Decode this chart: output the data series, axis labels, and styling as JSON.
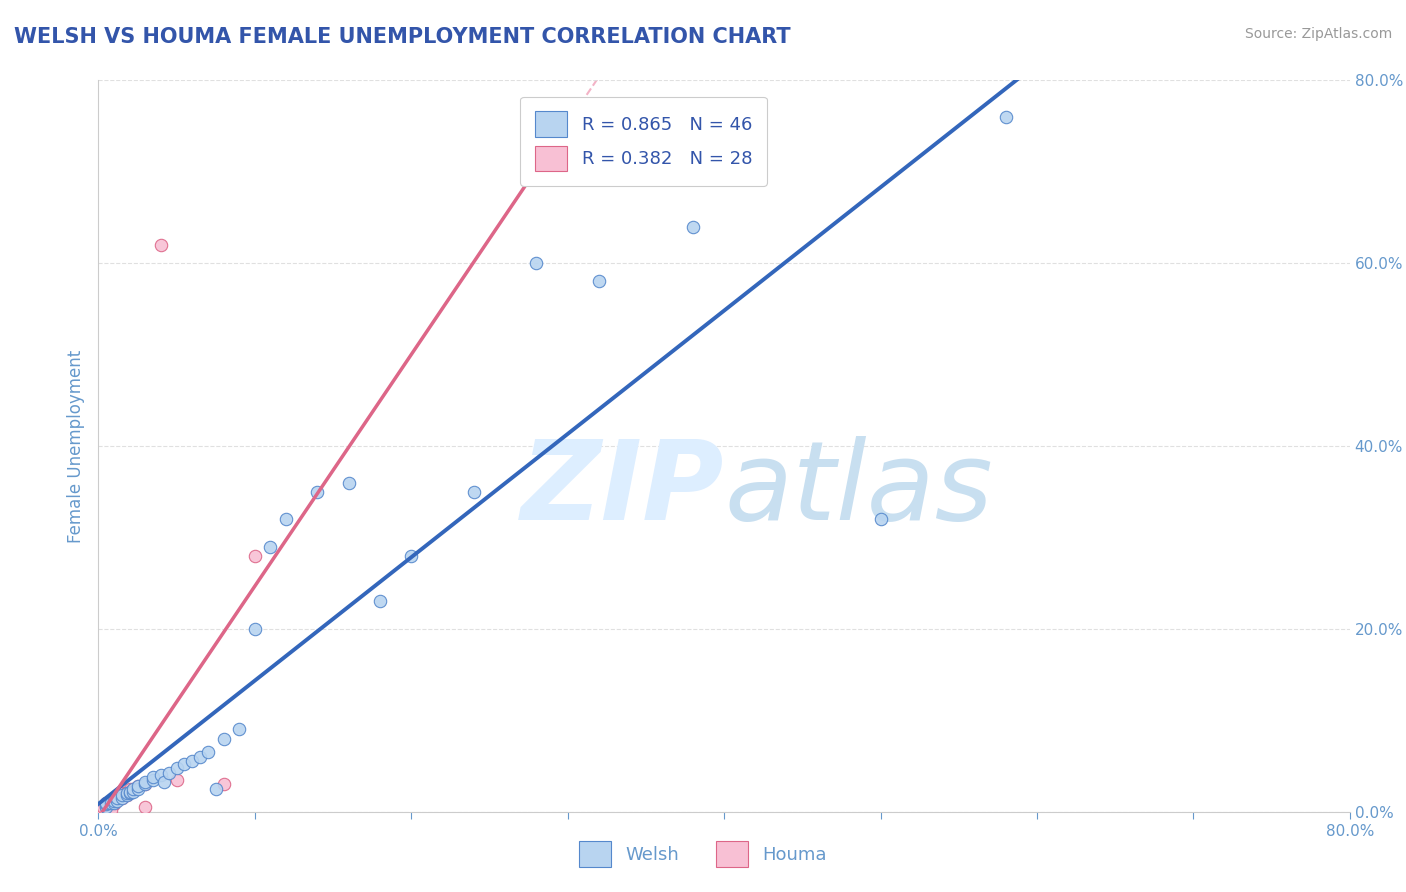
{
  "title": "WELSH VS HOUMA FEMALE UNEMPLOYMENT CORRELATION CHART",
  "source": "Source: ZipAtlas.com",
  "ylabel": "Female Unemployment",
  "welsh_r": 0.865,
  "welsh_n": 46,
  "houma_r": 0.382,
  "houma_n": 28,
  "welsh_color": "#b8d4f0",
  "welsh_edge_color": "#5588cc",
  "welsh_line_color": "#3366bb",
  "houma_color": "#f8c0d4",
  "houma_edge_color": "#dd6688",
  "houma_line_color": "#dd6688",
  "ref_line_color": "#f0a0b8",
  "title_color": "#3355aa",
  "axis_color": "#6699cc",
  "legend_color": "#3355aa",
  "background_color": "#ffffff",
  "watermark_color": "#ddeeff",
  "xlim": [
    0.0,
    0.8
  ],
  "ylim": [
    0.0,
    0.8
  ],
  "ytick_values": [
    0.0,
    0.2,
    0.4,
    0.6,
    0.8
  ],
  "grid_color": "#dddddd",
  "marker_size": 80,
  "welsh_x": [
    0.005,
    0.005,
    0.005,
    0.008,
    0.01,
    0.01,
    0.012,
    0.012,
    0.015,
    0.015,
    0.018,
    0.018,
    0.02,
    0.02,
    0.022,
    0.022,
    0.025,
    0.025,
    0.03,
    0.03,
    0.035,
    0.035,
    0.04,
    0.042,
    0.045,
    0.05,
    0.055,
    0.06,
    0.065,
    0.07,
    0.075,
    0.08,
    0.09,
    0.1,
    0.11,
    0.12,
    0.14,
    0.16,
    0.18,
    0.2,
    0.24,
    0.28,
    0.32,
    0.38,
    0.5,
    0.58
  ],
  "welsh_y": [
    0.005,
    0.008,
    0.01,
    0.01,
    0.01,
    0.012,
    0.012,
    0.015,
    0.015,
    0.018,
    0.018,
    0.02,
    0.02,
    0.022,
    0.022,
    0.025,
    0.025,
    0.028,
    0.03,
    0.032,
    0.035,
    0.038,
    0.04,
    0.032,
    0.042,
    0.048,
    0.052,
    0.055,
    0.06,
    0.065,
    0.025,
    0.08,
    0.09,
    0.2,
    0.29,
    0.32,
    0.35,
    0.36,
    0.23,
    0.28,
    0.35,
    0.6,
    0.58,
    0.64,
    0.32,
    0.76
  ],
  "houma_x": [
    0.002,
    0.003,
    0.005,
    0.005,
    0.005,
    0.007,
    0.007,
    0.008,
    0.008,
    0.01,
    0.01,
    0.012,
    0.012,
    0.015,
    0.015,
    0.018,
    0.018,
    0.02,
    0.02,
    0.022,
    0.025,
    0.03,
    0.04,
    0.05,
    0.08,
    0.1,
    0.03,
    0.008
  ],
  "houma_y": [
    0.003,
    0.005,
    0.005,
    0.007,
    0.01,
    0.007,
    0.01,
    0.01,
    0.012,
    0.008,
    0.012,
    0.015,
    0.018,
    0.015,
    0.02,
    0.018,
    0.022,
    0.022,
    0.025,
    0.025,
    0.028,
    0.03,
    0.62,
    0.035,
    0.03,
    0.28,
    0.005,
    0.002
  ]
}
